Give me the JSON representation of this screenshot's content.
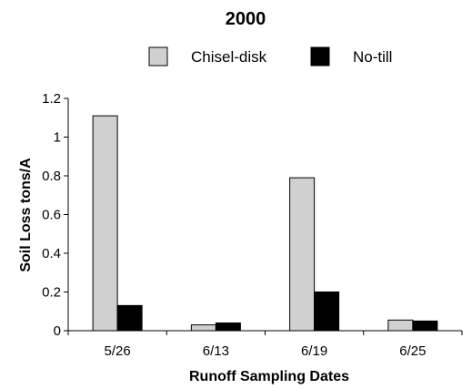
{
  "chart_data": {
    "type": "bar",
    "title": "2000",
    "xlabel": "Runoff Sampling Dates",
    "ylabel": "Soil Loss tons/A",
    "categories": [
      "5/26",
      "6/13",
      "6/19",
      "6/25"
    ],
    "series": [
      {
        "name": "Chisel-disk",
        "color": "#d0d0d0",
        "values": [
          1.11,
          0.03,
          0.79,
          0.055
        ]
      },
      {
        "name": "No-till",
        "color": "#000000",
        "values": [
          0.13,
          0.04,
          0.2,
          0.05
        ]
      }
    ],
    "ylim": [
      0,
      1.2
    ],
    "yticks": [
      "0",
      "0.2",
      "0.4",
      "0.6",
      "0.8",
      "1",
      "1.2"
    ],
    "grid": false,
    "legend_position": "top-center"
  }
}
